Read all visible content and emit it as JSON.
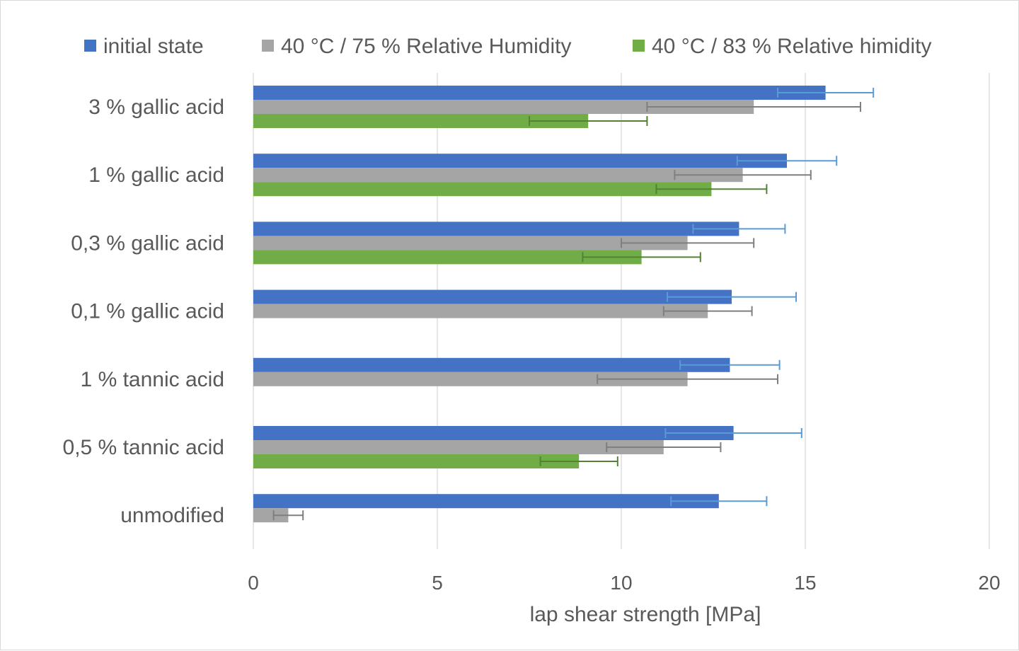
{
  "chart_data": {
    "type": "bar",
    "orientation": "horizontal",
    "categories": [
      "3 % gallic acid",
      "1 % gallic acid",
      "0,3 % gallic acid",
      "0,1 % gallic acid",
      "1 % tannic acid",
      "0,5 % tannic acid",
      "unmodified"
    ],
    "series": [
      {
        "name": "initial state",
        "color": "#4472c4",
        "error_color": "#5b9bd5",
        "values": [
          15.55,
          14.5,
          13.2,
          13.0,
          12.95,
          13.05,
          12.65
        ],
        "errors": [
          1.3,
          1.35,
          1.25,
          1.75,
          1.35,
          1.85,
          1.3
        ]
      },
      {
        "name": "40 °C / 75 % Relative Humidity",
        "color": "#a5a5a5",
        "error_color": "#7f7f7f",
        "values": [
          13.6,
          13.3,
          11.8,
          12.35,
          11.8,
          11.15,
          0.95
        ],
        "errors": [
          2.9,
          1.85,
          1.8,
          1.2,
          2.45,
          1.55,
          0.4
        ]
      },
      {
        "name": "40 °C / 83 % Relative himidity",
        "color": "#70ad47",
        "error_color": "#548235",
        "values": [
          9.1,
          12.45,
          10.55,
          null,
          null,
          8.85,
          null
        ],
        "errors": [
          1.6,
          1.5,
          1.6,
          null,
          null,
          1.05,
          null
        ]
      }
    ],
    "xlabel": "lap shear strength [MPa]",
    "ylabel": "",
    "xlim": [
      0,
      20
    ],
    "xticks": [
      "0",
      "5",
      "10",
      "15",
      "20"
    ],
    "grid": "vertical",
    "legend": "top"
  }
}
